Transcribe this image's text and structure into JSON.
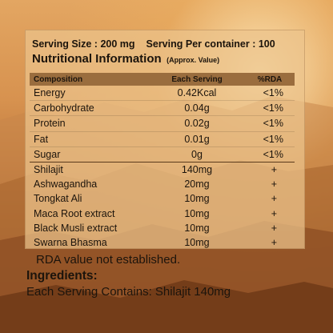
{
  "header": {
    "serving_size": "Serving Size : 200 mg",
    "serving_per_container": "Serving Per container : 100",
    "title": "Nutritional Information",
    "title_note": "(Approx. Value)"
  },
  "table": {
    "columns": [
      "Composition",
      "Each Serving",
      "%RDA"
    ],
    "rows": [
      [
        "Energy",
        "0.42Kcal",
        "<1%"
      ],
      [
        "Carbohydrate",
        "0.04g",
        "<1%"
      ],
      [
        "Protein",
        "0.02g",
        "<1%"
      ],
      [
        "Fat",
        "0.01g",
        "<1%"
      ],
      [
        "Sugar",
        "0g",
        "<1%"
      ],
      [
        "Shilajit",
        "140mg",
        "+"
      ],
      [
        "Ashwagandha",
        "20mg",
        "+"
      ],
      [
        "Tongkat Ali",
        "10mg",
        "+"
      ],
      [
        "Maca Root extract",
        "10mg",
        "+"
      ],
      [
        "Black Musli extract",
        "10mg",
        "+"
      ],
      [
        "Swarna Bhasma",
        "10mg",
        "+"
      ]
    ]
  },
  "footer": {
    "rda_note": "RDA value not established.",
    "ingredients_heading": "Ingredients:",
    "ingredients_text": "Each Serving Contains: Shilajit 140mg"
  },
  "colors": {
    "panel": "#ecc48c",
    "header_band": "#9a6d3e",
    "text": "#1c140c"
  }
}
